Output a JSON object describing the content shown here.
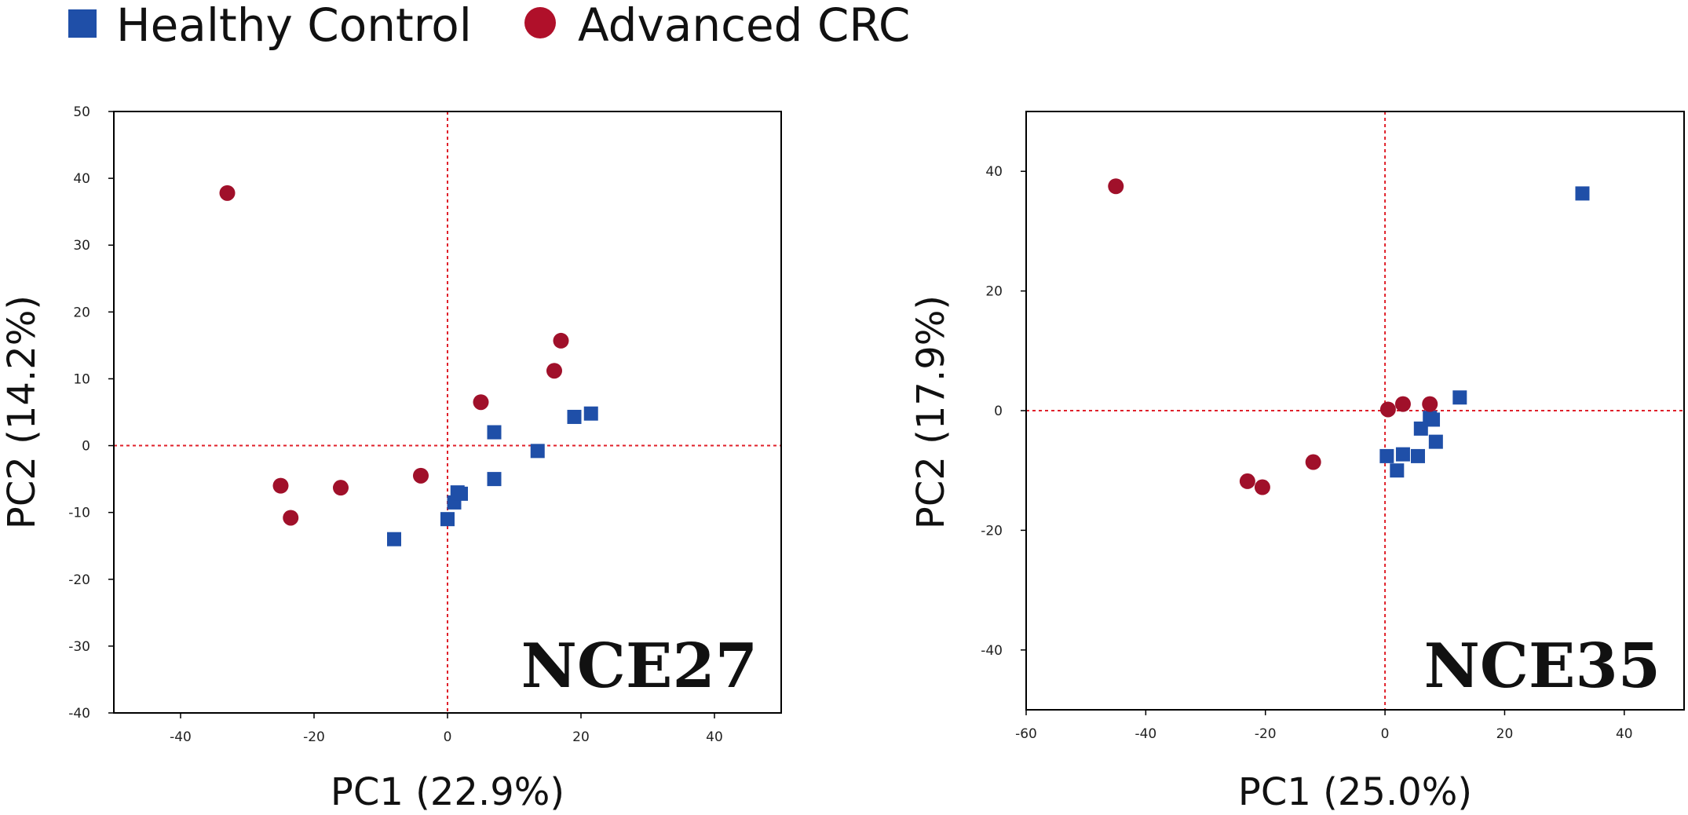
{
  "legend": {
    "items": [
      {
        "label": "Healthy Control",
        "marker": "square",
        "color": "#1f4fa8"
      },
      {
        "label": "Advanced CRC",
        "marker": "circle",
        "color": "#b0102a"
      }
    ]
  },
  "colors": {
    "healthy": "#1f4fa8",
    "crc": "#a0102a",
    "reference_line": "#e0202a",
    "frame": "#000000"
  },
  "chart_data": [
    {
      "type": "scatter",
      "panel_label": "NCE27",
      "xlabel": "PC1 (22.9%)",
      "ylabel": "PC2 (14.2%)",
      "xlim": [
        -50,
        50
      ],
      "ylim": [
        -40,
        50
      ],
      "xticks": [
        -40,
        -20,
        0,
        20,
        40
      ],
      "yticks": [
        -40,
        -30,
        -20,
        -10,
        0,
        10,
        20,
        30,
        40,
        50
      ],
      "reference_lines": {
        "x": 0,
        "y": 0
      },
      "series": [
        {
          "name": "Healthy Control",
          "marker": "square",
          "points": [
            [
              -8,
              -14
            ],
            [
              0,
              -11
            ],
            [
              1,
              -8.5
            ],
            [
              1.5,
              -7
            ],
            [
              2,
              -7.2
            ],
            [
              7,
              -5
            ],
            [
              7,
              2
            ],
            [
              13.5,
              -0.8
            ],
            [
              19,
              4.3
            ],
            [
              21.5,
              4.8
            ]
          ]
        },
        {
          "name": "Advanced CRC",
          "marker": "circle",
          "points": [
            [
              -33,
              37.8
            ],
            [
              -25,
              -6
            ],
            [
              -23.5,
              -10.8
            ],
            [
              -16,
              -6.3
            ],
            [
              -4,
              -4.5
            ],
            [
              5,
              6.5
            ],
            [
              16,
              11.2
            ],
            [
              17,
              15.7
            ]
          ]
        }
      ]
    },
    {
      "type": "scatter",
      "panel_label": "NCE35",
      "xlabel": "PC1 (25.0%)",
      "ylabel": "PC2 (17.9%)",
      "xlim": [
        -60,
        50
      ],
      "ylim": [
        -50,
        50
      ],
      "xticks": [
        -60,
        -40,
        -20,
        0,
        20,
        40
      ],
      "yticks": [
        -40,
        -20,
        0,
        20,
        40
      ],
      "reference_lines": {
        "x": 0,
        "y": 0
      },
      "series": [
        {
          "name": "Healthy Control",
          "marker": "square",
          "points": [
            [
              33,
              36.3
            ],
            [
              12.5,
              2.2
            ],
            [
              7.5,
              -1.2
            ],
            [
              8,
              -1.5
            ],
            [
              6,
              -3
            ],
            [
              8.5,
              -5.2
            ],
            [
              5.5,
              -7.6
            ],
            [
              3,
              -7.3
            ],
            [
              0.3,
              -7.6
            ],
            [
              2,
              -10
            ]
          ]
        },
        {
          "name": "Advanced CRC",
          "marker": "circle",
          "points": [
            [
              -45,
              37.5
            ],
            [
              -23,
              -11.8
            ],
            [
              -20.5,
              -12.8
            ],
            [
              -12,
              -8.6
            ],
            [
              0.5,
              0.2
            ],
            [
              3,
              1.1
            ],
            [
              7.5,
              1.1
            ]
          ]
        }
      ]
    }
  ]
}
